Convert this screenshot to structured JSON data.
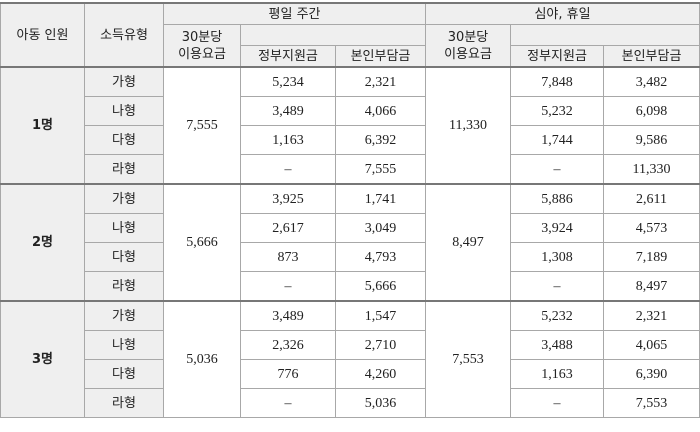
{
  "header": {
    "children": "아동 인원",
    "income_type": "소득유형",
    "weekday": "평일 주간",
    "night": "심야, 휴일",
    "rate": "30분당\n이용요금",
    "gov": "정부지원금",
    "self": "본인부담금"
  },
  "groups": [
    {
      "count": "1명",
      "day_rate": "7,555",
      "night_rate": "11,330",
      "rows": [
        [
          "가형",
          "5,234",
          "2,321",
          "7,848",
          "3,482"
        ],
        [
          "나형",
          "3,489",
          "4,066",
          "5,232",
          "6,098"
        ],
        [
          "다형",
          "1,163",
          "6,392",
          "1,744",
          "9,586"
        ],
        [
          "라형",
          "–",
          "7,555",
          "–",
          "11,330"
        ]
      ]
    },
    {
      "count": "2명",
      "day_rate": "5,666",
      "night_rate": "8,497",
      "rows": [
        [
          "가형",
          "3,925",
          "1,741",
          "5,886",
          "2,611"
        ],
        [
          "나형",
          "2,617",
          "3,049",
          "3,924",
          "4,573"
        ],
        [
          "다형",
          "873",
          "4,793",
          "1,308",
          "7,189"
        ],
        [
          "라형",
          "–",
          "5,666",
          "–",
          "8,497"
        ]
      ]
    },
    {
      "count": "3명",
      "day_rate": "5,036",
      "night_rate": "7,553",
      "rows": [
        [
          "가형",
          "3,489",
          "1,547",
          "5,232",
          "2,321"
        ],
        [
          "나형",
          "2,326",
          "2,710",
          "3,488",
          "4,065"
        ],
        [
          "다형",
          "776",
          "4,260",
          "1,163",
          "6,390"
        ],
        [
          "라형",
          "–",
          "5,036",
          "–",
          "7,553"
        ]
      ]
    }
  ]
}
